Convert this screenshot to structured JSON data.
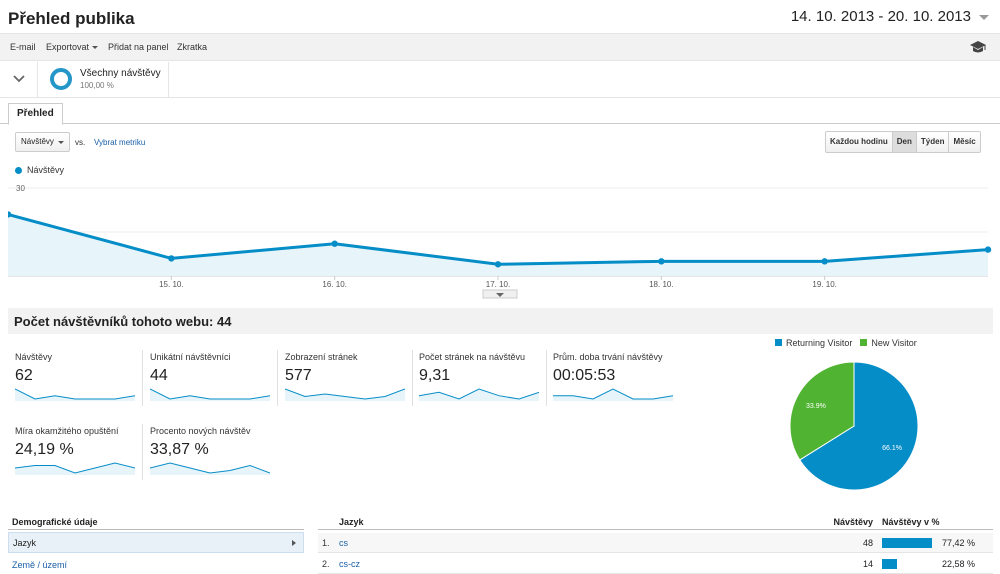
{
  "header": {
    "title": "Přehled publika",
    "date_range": "14. 10. 2013 - 20. 10. 2013"
  },
  "toolbar": {
    "email": "E-mail",
    "export": "Exportovat",
    "add_to_dashboard": "Přidat na panel",
    "shortcut": "Zkratka"
  },
  "segment": {
    "name": "Všechny návštěvy",
    "percent": "100,00 %"
  },
  "tabs": {
    "overview": "Přehled"
  },
  "chart_controls": {
    "metric": "Návštěvy",
    "vs": "vs.",
    "select_metric": "Vybrat metriku",
    "periods": [
      "Každou hodinu",
      "Den",
      "Týden",
      "Měsíc"
    ],
    "active_period": "Den"
  },
  "chart_data": {
    "type": "area",
    "series": [
      {
        "name": "Návštěvy",
        "color": "#058dc7",
        "values": [
          21,
          6,
          11,
          4,
          5,
          5,
          9
        ]
      }
    ],
    "x": [
      "14. 10.",
      "15. 10.",
      "16. 10.",
      "17. 10.",
      "18. 10.",
      "19. 10.",
      "20. 10."
    ],
    "tick_labels": [
      "15. 10.",
      "16. 10.",
      "17. 10.",
      "18. 10.",
      "19. 10."
    ],
    "y_ticks": [
      "30",
      "15"
    ],
    "ylim": [
      0,
      30
    ],
    "grid": true
  },
  "summary": {
    "title": "Počet návštěvníků tohoto webu: 44"
  },
  "kpis": [
    {
      "label": "Návštěvy",
      "value": "62",
      "spark": [
        5,
        2,
        3,
        2,
        2,
        2,
        3
      ]
    },
    {
      "label": "Unikátní návštěvníci",
      "value": "44",
      "spark": [
        5,
        2,
        3,
        2,
        2,
        2,
        3
      ]
    },
    {
      "label": "Zobrazení stránek",
      "value": "577",
      "spark": [
        5,
        2,
        3,
        2,
        1,
        2,
        5
      ]
    },
    {
      "label": "Počet stránek na návštěvu",
      "value": "9,31",
      "spark": [
        3,
        4,
        2,
        5,
        3,
        2,
        4
      ]
    },
    {
      "label": "Prům. doba trvání návštěvy",
      "value": "00:05:53",
      "spark": [
        3,
        3,
        2,
        5,
        2,
        2,
        3
      ]
    },
    {
      "label": "Míra okamžitého opuštění",
      "value": "24,19 %",
      "spark": [
        3,
        4,
        4,
        1,
        3,
        5,
        3
      ]
    },
    {
      "label": "Procento nových návštěv",
      "value": "33,87 %",
      "spark": [
        3,
        5,
        3,
        1,
        2,
        4,
        1
      ]
    }
  ],
  "pie": {
    "legend": [
      {
        "label": "Returning Visitor",
        "color": "#058dc7",
        "value": 66.1,
        "display": "66.1%"
      },
      {
        "label": "New Visitor",
        "color": "#50b432",
        "value": 33.9,
        "display": "33.9%"
      }
    ]
  },
  "demographics": {
    "header": "Demografické údaje",
    "selected": "Jazyk",
    "other": "Země / území"
  },
  "language_table": {
    "col_language": "Jazyk",
    "col_visits": "Návštěvy",
    "col_visits_pct": "Návštěvy v %",
    "rows": [
      {
        "index": "1.",
        "language": "cs",
        "visits": "48",
        "pct": "77,42 %",
        "share": 77.42
      },
      {
        "index": "2.",
        "language": "cs-cz",
        "visits": "14",
        "pct": "22,58 %",
        "share": 22.58
      }
    ]
  }
}
